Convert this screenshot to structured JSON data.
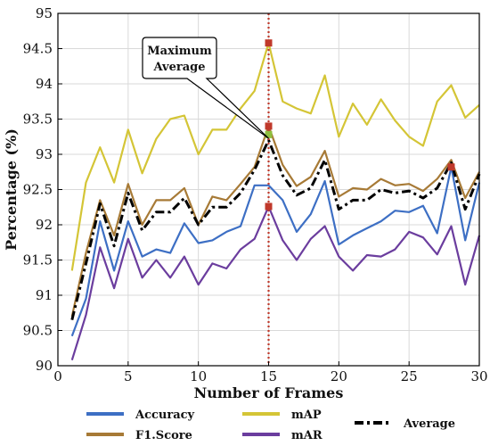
{
  "chart_data": {
    "type": "line",
    "xlabel": "Number of Frames",
    "ylabel": "Percentage (%)",
    "xlim": [
      0,
      30
    ],
    "ylim": [
      90,
      95
    ],
    "xticks": [
      0,
      5,
      10,
      15,
      20,
      25,
      30
    ],
    "yticks": [
      90,
      90.5,
      91,
      91.5,
      92,
      92.5,
      93,
      93.5,
      94,
      94.5,
      95
    ],
    "grid": true,
    "legend_position": "bottom",
    "x": [
      1,
      2,
      3,
      4,
      5,
      6,
      7,
      8,
      9,
      10,
      11,
      12,
      13,
      14,
      15,
      16,
      17,
      18,
      19,
      20,
      21,
      22,
      23,
      24,
      25,
      26,
      27,
      28,
      29,
      30
    ],
    "series": [
      {
        "name": "Accuracy",
        "color": "#3d6fc4",
        "style": "solid",
        "values": [
          90.42,
          90.95,
          92.05,
          91.35,
          92.05,
          91.55,
          91.65,
          91.6,
          92.02,
          91.74,
          91.78,
          91.9,
          91.98,
          92.56,
          92.56,
          92.35,
          91.9,
          92.15,
          92.62,
          91.72,
          91.85,
          91.95,
          92.05,
          92.2,
          92.18,
          92.27,
          91.88,
          92.82,
          91.78,
          92.6
        ]
      },
      {
        "name": "F1.Score",
        "color": "#a77a36",
        "style": "solid",
        "values": [
          90.7,
          91.6,
          92.35,
          91.85,
          92.58,
          92.0,
          92.35,
          92.35,
          92.52,
          92.0,
          92.4,
          92.35,
          92.58,
          92.82,
          93.4,
          92.85,
          92.55,
          92.68,
          93.05,
          92.4,
          92.52,
          92.5,
          92.65,
          92.56,
          92.58,
          92.48,
          92.65,
          92.92,
          92.38,
          92.75
        ]
      },
      {
        "name": "mAP",
        "color": "#d4c536",
        "style": "solid",
        "values": [
          91.35,
          92.6,
          93.1,
          92.6,
          93.35,
          92.73,
          93.22,
          93.5,
          93.55,
          93.0,
          93.35,
          93.35,
          93.65,
          93.9,
          94.58,
          93.75,
          93.65,
          93.58,
          94.12,
          93.25,
          93.72,
          93.42,
          93.78,
          93.48,
          93.25,
          93.12,
          93.75,
          93.98,
          93.52,
          93.7
        ]
      },
      {
        "name": "mAR",
        "color": "#6b3d9e",
        "style": "solid",
        "values": [
          90.08,
          90.72,
          91.68,
          91.1,
          91.8,
          91.25,
          91.5,
          91.25,
          91.55,
          91.15,
          91.45,
          91.38,
          91.65,
          91.8,
          92.26,
          91.78,
          91.5,
          91.8,
          91.98,
          91.55,
          91.35,
          91.57,
          91.55,
          91.65,
          91.9,
          91.82,
          91.58,
          91.98,
          91.15,
          91.85
        ]
      },
      {
        "name": "Average",
        "color": "#000000",
        "style": "dashdot",
        "values": [
          90.65,
          91.45,
          92.3,
          91.7,
          92.45,
          91.92,
          92.18,
          92.18,
          92.38,
          92.0,
          92.25,
          92.25,
          92.45,
          92.78,
          93.2,
          92.7,
          92.42,
          92.52,
          92.92,
          92.22,
          92.35,
          92.35,
          92.5,
          92.45,
          92.48,
          92.38,
          92.52,
          92.88,
          92.22,
          92.72
        ]
      }
    ],
    "highlight": {
      "x": 15,
      "line_color": "#c0392b"
    },
    "markers": [
      {
        "x": 15,
        "y": 94.58,
        "color": "#c0392b"
      },
      {
        "x": 15,
        "y": 93.4,
        "color": "#c0392b"
      },
      {
        "x": 15,
        "y": 92.26,
        "color": "#c0392b"
      },
      {
        "x": 15,
        "y": 93.28,
        "color": "#8fbf3f"
      },
      {
        "x": 28,
        "y": 92.82,
        "color": "#c0392b"
      }
    ],
    "annotation": {
      "text_line1": "Maximum",
      "text_line2": "Average",
      "target_x": 15,
      "target_y": 93.2
    }
  }
}
